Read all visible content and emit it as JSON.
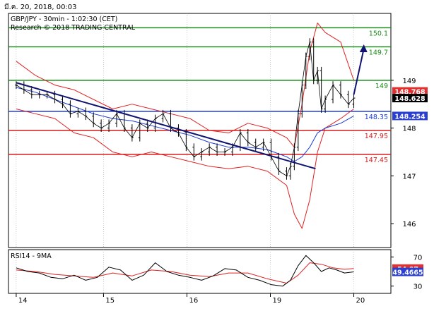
{
  "header": {
    "datetime": "มี.ค. 20, 2018, 00:03"
  },
  "chart_data": {
    "type": "line",
    "instrument_label": "GBP/JPY - 30min - 1:02:30 (CET)",
    "research_label": "Research © 2018 TRADING CENTRAL",
    "ylim": [
      145.5,
      150.4
    ],
    "y_ticks": [
      146,
      147,
      148,
      149
    ],
    "y_tick_labels": [
      "146",
      "147",
      "148",
      "149"
    ],
    "x_ticks": [
      {
        "pos": 0.0,
        "label": "14"
      },
      {
        "pos": 0.226,
        "label": "15"
      },
      {
        "pos": 0.442,
        "label": "16"
      },
      {
        "pos": 0.658,
        "label": "19"
      },
      {
        "pos": 0.874,
        "label": "20"
      }
    ],
    "x_range": [
      -0.02,
      0.97
    ],
    "levels": [
      {
        "value": 150.1,
        "label": "150.1",
        "kind": "resistance",
        "color": "#1a8c1a"
      },
      {
        "value": 149.7,
        "label": "149.7",
        "kind": "resistance",
        "color": "#1a8c1a"
      },
      {
        "value": 149.0,
        "label": "149",
        "kind": "resistance",
        "color": "#1a8c1a"
      },
      {
        "value": 148.35,
        "label": "148.35",
        "kind": "pivot",
        "color": "#1a3ad6"
      },
      {
        "value": 147.95,
        "label": "147.95",
        "kind": "support",
        "color": "#d61a1a"
      },
      {
        "value": 147.45,
        "label": "147.45",
        "kind": "support",
        "color": "#d61a1a"
      }
    ],
    "price_tags": [
      {
        "value": 148.768,
        "label": "148.768",
        "bg": "#e03030",
        "fg": "#ffffff"
      },
      {
        "value": 148.628,
        "label": "148.628",
        "bg": "#000000",
        "fg": "#ffffff"
      },
      {
        "value": 148.254,
        "label": "148.254",
        "bg": "#2a3fd0",
        "fg": "#ffffff"
      }
    ],
    "price_series": {
      "name": "GBP/JPY",
      "x": [
        0.0,
        0.02,
        0.04,
        0.06,
        0.08,
        0.1,
        0.12,
        0.14,
        0.16,
        0.18,
        0.2,
        0.22,
        0.24,
        0.26,
        0.28,
        0.3,
        0.32,
        0.34,
        0.36,
        0.38,
        0.4,
        0.42,
        0.44,
        0.46,
        0.48,
        0.5,
        0.52,
        0.54,
        0.56,
        0.58,
        0.6,
        0.62,
        0.64,
        0.66,
        0.68,
        0.7,
        0.71,
        0.72,
        0.73,
        0.74,
        0.75,
        0.76,
        0.77,
        0.78,
        0.79,
        0.8,
        0.82,
        0.84,
        0.86,
        0.874
      ],
      "y": [
        148.9,
        148.8,
        148.7,
        148.7,
        148.7,
        148.6,
        148.5,
        148.3,
        148.35,
        148.25,
        148.1,
        148.0,
        148.1,
        148.3,
        148.0,
        147.8,
        148.1,
        148.0,
        148.2,
        148.3,
        148.0,
        147.9,
        147.6,
        147.4,
        147.5,
        147.6,
        147.5,
        147.5,
        147.6,
        147.9,
        147.7,
        147.6,
        147.7,
        147.4,
        147.1,
        147.0,
        147.2,
        147.6,
        148.3,
        148.9,
        149.5,
        149.8,
        149.0,
        149.2,
        148.4,
        148.6,
        148.9,
        148.7,
        148.5,
        148.628
      ]
    },
    "moving_average": {
      "name": "MA",
      "color": "#1a3ad6",
      "x": [
        0.0,
        0.05,
        0.1,
        0.15,
        0.2,
        0.25,
        0.3,
        0.35,
        0.4,
        0.45,
        0.5,
        0.55,
        0.6,
        0.65,
        0.7,
        0.72,
        0.74,
        0.76,
        0.78,
        0.8,
        0.84,
        0.874
      ],
      "y": [
        148.85,
        148.75,
        148.6,
        148.45,
        148.3,
        148.2,
        148.15,
        148.05,
        147.95,
        147.85,
        147.7,
        147.6,
        147.6,
        147.55,
        147.4,
        147.3,
        147.4,
        147.6,
        147.9,
        148.0,
        148.1,
        148.254
      ]
    },
    "bollinger_upper": {
      "color": "#e02020",
      "x": [
        0.0,
        0.05,
        0.1,
        0.15,
        0.2,
        0.25,
        0.3,
        0.35,
        0.4,
        0.45,
        0.5,
        0.55,
        0.6,
        0.65,
        0.7,
        0.72,
        0.74,
        0.76,
        0.78,
        0.8,
        0.84,
        0.874
      ],
      "y": [
        149.4,
        149.1,
        148.9,
        148.8,
        148.6,
        148.4,
        148.5,
        148.4,
        148.3,
        148.2,
        147.95,
        147.9,
        148.1,
        148.0,
        147.8,
        147.6,
        148.5,
        149.6,
        150.2,
        150.0,
        149.8,
        149.0
      ]
    },
    "bollinger_lower": {
      "color": "#e02020",
      "x": [
        0.0,
        0.05,
        0.1,
        0.15,
        0.2,
        0.25,
        0.3,
        0.35,
        0.4,
        0.45,
        0.5,
        0.55,
        0.6,
        0.65,
        0.7,
        0.72,
        0.74,
        0.76,
        0.78,
        0.8,
        0.84,
        0.874
      ],
      "y": [
        148.4,
        148.3,
        148.2,
        147.9,
        147.8,
        147.5,
        147.4,
        147.5,
        147.4,
        147.3,
        147.2,
        147.15,
        147.2,
        147.1,
        146.8,
        146.2,
        145.9,
        146.5,
        147.5,
        148.0,
        148.2,
        148.4
      ]
    },
    "trendline": {
      "color": "#101470",
      "x": [
        0.0,
        0.775
      ],
      "y": [
        148.95,
        147.15
      ]
    },
    "forecast_arrow": {
      "color": "#101470",
      "x": [
        0.874,
        0.9
      ],
      "y": [
        148.7,
        149.75
      ]
    },
    "rsi_panel": {
      "label": "RSI14 - 9MA",
      "ylim": [
        20,
        80
      ],
      "y_ticks": [
        30,
        70
      ],
      "y_tick_labels": [
        "30",
        "70"
      ],
      "tags": [
        {
          "value": 54.07,
          "label": "54.07",
          "bg": "#e03030",
          "fg": "#ffffff"
        },
        {
          "value": 49.4665,
          "label": "49.4665",
          "bg": "#2a3fd0",
          "fg": "#ffffff"
        }
      ],
      "rsi": {
        "name": "RSI14",
        "color": "#000000",
        "x": [
          0.0,
          0.03,
          0.06,
          0.09,
          0.12,
          0.15,
          0.18,
          0.21,
          0.24,
          0.27,
          0.3,
          0.33,
          0.36,
          0.39,
          0.42,
          0.45,
          0.48,
          0.51,
          0.54,
          0.57,
          0.6,
          0.63,
          0.66,
          0.69,
          0.71,
          0.73,
          0.75,
          0.77,
          0.79,
          0.81,
          0.83,
          0.85,
          0.874
        ],
        "y": [
          55,
          50,
          48,
          42,
          40,
          45,
          38,
          42,
          56,
          52,
          38,
          45,
          62,
          50,
          45,
          42,
          38,
          44,
          54,
          52,
          42,
          38,
          32,
          30,
          38,
          58,
          72,
          62,
          50,
          55,
          52,
          48,
          49.5
        ]
      },
      "rsi_ma": {
        "name": "9MA",
        "color": "#e02020",
        "x": [
          0.0,
          0.05,
          0.1,
          0.15,
          0.2,
          0.25,
          0.3,
          0.35,
          0.4,
          0.45,
          0.5,
          0.55,
          0.6,
          0.65,
          0.7,
          0.73,
          0.76,
          0.79,
          0.82,
          0.85,
          0.874
        ],
        "y": [
          52,
          50,
          46,
          44,
          42,
          48,
          44,
          52,
          50,
          45,
          43,
          48,
          48,
          40,
          34,
          45,
          62,
          60,
          55,
          53,
          54.07
        ]
      }
    }
  }
}
